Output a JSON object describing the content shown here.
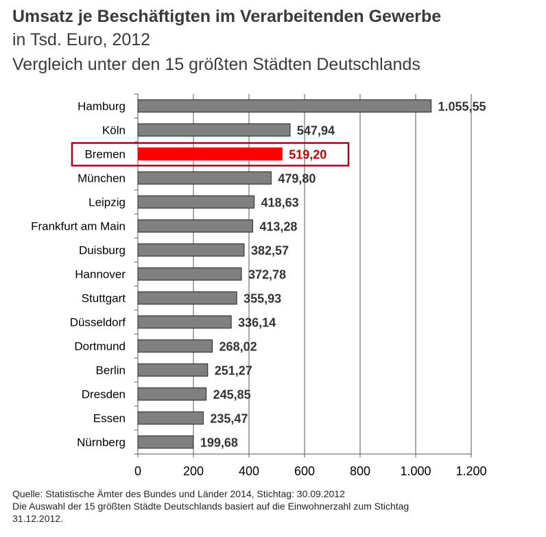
{
  "chart_data": {
    "type": "bar",
    "orientation": "horizontal",
    "title": "Umsatz je Beschäftigten im Verarbeitenden Gewerbe",
    "subtitle": "in Tsd. Euro, 2012",
    "subtitle2": "Vergleich unter den 15 größten Städten Deutschlands",
    "categories": [
      "Hamburg",
      "Köln",
      "Bremen",
      "München",
      "Leipzig",
      "Frankfurt am Main",
      "Duisburg",
      "Hannover",
      "Stuttgart",
      "Düsseldorf",
      "Dortmund",
      "Berlin",
      "Dresden",
      "Essen",
      "Nürnberg"
    ],
    "values": [
      1055.55,
      547.94,
      519.2,
      479.8,
      418.63,
      413.28,
      382.57,
      372.78,
      355.93,
      336.14,
      268.02,
      251.27,
      245.85,
      235.47,
      199.68
    ],
    "value_labels": [
      "1.055,55",
      "547,94",
      "519,20",
      "479,80",
      "418,63",
      "413,28",
      "382,57",
      "372,78",
      "355,93",
      "336,14",
      "268,02",
      "251,27",
      "245,85",
      "235,47",
      "199,68"
    ],
    "highlight": "Bremen",
    "xlim": [
      0,
      1200
    ],
    "xticks": [
      0,
      200,
      400,
      600,
      800,
      1000,
      1200
    ],
    "xtick_labels": [
      "0",
      "200",
      "400",
      "600",
      "800",
      "1.000",
      "1.200"
    ],
    "grid": "vertical",
    "colors": {
      "bar": "#808080",
      "highlight": "#ff0000",
      "highlight_border": "#a50021",
      "highlight_label": "#c00000",
      "label": "#333333"
    }
  },
  "footer": {
    "source": "Quelle: Statistische Ämter des Bundes und Länder 2014, Stichtag: 30.09.2012",
    "note1": "Die Auswahl der 15 größten Städte Deutschlands basiert auf die Einwohnerzahl zum Stichtag",
    "note2": "31.12.2012."
  }
}
